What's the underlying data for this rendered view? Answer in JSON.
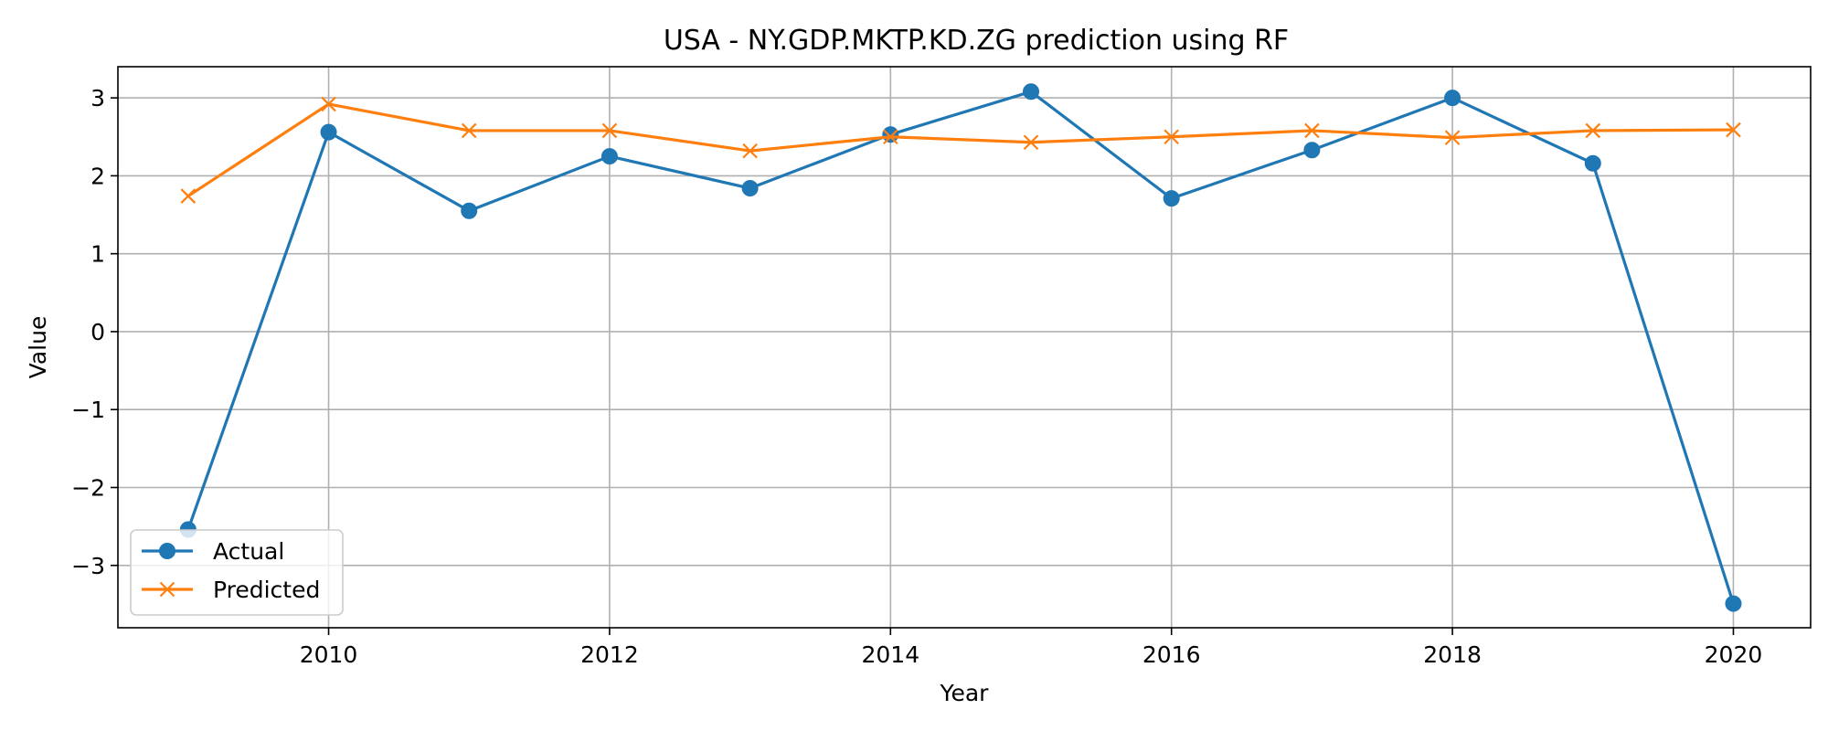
{
  "chart_data": {
    "type": "line",
    "title": "USA - NY.GDP.MKTP.KD.ZG prediction using RF",
    "xlabel": "Year",
    "ylabel": "Value",
    "x": [
      2009,
      2010,
      2011,
      2012,
      2013,
      2014,
      2015,
      2016,
      2017,
      2018,
      2019,
      2020
    ],
    "xlim": [
      2008.5,
      2020.55
    ],
    "ylim": [
      -3.8,
      3.4
    ],
    "xticks": [
      2010,
      2012,
      2014,
      2016,
      2018,
      2020
    ],
    "yticks": [
      3,
      2,
      1,
      0,
      -1,
      -2,
      -3
    ],
    "ytick_labels": [
      "3",
      "2",
      "1",
      "0",
      "−1",
      "−2",
      "−3"
    ],
    "grid": true,
    "legend_position": "lower-left",
    "series": [
      {
        "name": "Actual",
        "color": "#1f77b4",
        "marker": "circle",
        "values": [
          -2.54,
          2.56,
          1.55,
          2.25,
          1.84,
          2.53,
          3.08,
          1.71,
          2.33,
          3.0,
          2.16,
          -3.49
        ]
      },
      {
        "name": "Predicted",
        "color": "#ff7f0e",
        "marker": "x",
        "values": [
          1.74,
          2.92,
          2.58,
          2.58,
          2.32,
          2.5,
          2.43,
          2.5,
          2.58,
          2.49,
          2.58,
          2.59
        ]
      }
    ]
  }
}
